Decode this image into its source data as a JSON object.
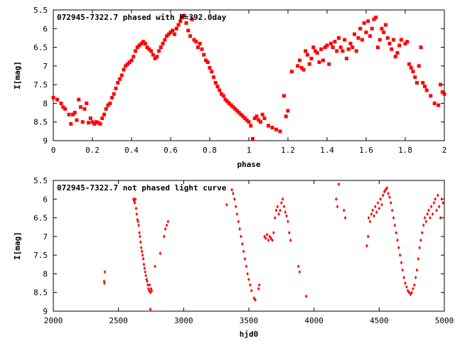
{
  "chart_data": [
    {
      "type": "scatter",
      "title": "072945-7322.7 phased with P=392.0day",
      "xlabel": "phase",
      "ylabel": "I[mag]",
      "xlim": [
        0,
        2
      ],
      "ylim": [
        5.5,
        9
      ],
      "y_inverted": true,
      "xticks": [
        0,
        0.2,
        0.4,
        0.6,
        0.8,
        1,
        1.2,
        1.4,
        1.6,
        1.8,
        2
      ],
      "xtick_labels": [
        "0",
        "0.2",
        "0.4",
        "0.6",
        "0.8",
        "1",
        "1.2",
        "1.4",
        "1.6",
        "1.8",
        "2"
      ],
      "yticks": [
        5.5,
        6,
        6.5,
        7,
        7.5,
        8,
        8.5,
        9
      ],
      "ytick_labels": [
        "5.5",
        "6",
        "6.5",
        "7",
        "7.5",
        "8",
        "8.5",
        "9"
      ],
      "grid": false,
      "marker_color": "#ff0000",
      "marker": "square",
      "points": [
        [
          0.0,
          7.85
        ],
        [
          0.02,
          7.9
        ],
        [
          0.04,
          8.0
        ],
        [
          0.05,
          8.1
        ],
        [
          0.06,
          8.15
        ],
        [
          0.08,
          8.3
        ],
        [
          0.09,
          8.55
        ],
        [
          0.1,
          8.3
        ],
        [
          0.11,
          8.25
        ],
        [
          0.12,
          8.45
        ],
        [
          0.13,
          7.9
        ],
        [
          0.14,
          8.1
        ],
        [
          0.15,
          8.5
        ],
        [
          0.16,
          8.15
        ],
        [
          0.17,
          8.0
        ],
        [
          0.18,
          8.52
        ],
        [
          0.19,
          8.4
        ],
        [
          0.2,
          8.5
        ],
        [
          0.21,
          8.55
        ],
        [
          0.22,
          8.5
        ],
        [
          0.23,
          8.52
        ],
        [
          0.24,
          8.55
        ],
        [
          0.25,
          8.4
        ],
        [
          0.26,
          8.3
        ],
        [
          0.27,
          8.15
        ],
        [
          0.28,
          8.05
        ],
        [
          0.29,
          8.0
        ],
        [
          0.3,
          7.85
        ],
        [
          0.31,
          7.75
        ],
        [
          0.32,
          7.6
        ],
        [
          0.33,
          7.45
        ],
        [
          0.34,
          7.35
        ],
        [
          0.35,
          7.25
        ],
        [
          0.36,
          7.1
        ],
        [
          0.37,
          7.0
        ],
        [
          0.38,
          6.95
        ],
        [
          0.39,
          6.9
        ],
        [
          0.4,
          6.85
        ],
        [
          0.41,
          6.75
        ],
        [
          0.42,
          6.6
        ],
        [
          0.43,
          6.5
        ],
        [
          0.44,
          6.45
        ],
        [
          0.45,
          6.4
        ],
        [
          0.46,
          6.35
        ],
        [
          0.47,
          6.4
        ],
        [
          0.48,
          6.5
        ],
        [
          0.49,
          6.55
        ],
        [
          0.5,
          6.6
        ],
        [
          0.51,
          6.7
        ],
        [
          0.52,
          6.8
        ],
        [
          0.53,
          6.75
        ],
        [
          0.54,
          6.6
        ],
        [
          0.55,
          6.5
        ],
        [
          0.56,
          6.4
        ],
        [
          0.57,
          6.3
        ],
        [
          0.58,
          6.2
        ],
        [
          0.59,
          6.15
        ],
        [
          0.6,
          6.1
        ],
        [
          0.61,
          6.05
        ],
        [
          0.62,
          6.15
        ],
        [
          0.63,
          6.0
        ],
        [
          0.64,
          5.9
        ],
        [
          0.65,
          5.8
        ],
        [
          0.66,
          5.7
        ],
        [
          0.67,
          5.65
        ],
        [
          0.68,
          5.85
        ],
        [
          0.69,
          6.05
        ],
        [
          0.7,
          6.2
        ],
        [
          0.71,
          5.75
        ],
        [
          0.72,
          6.3
        ],
        [
          0.73,
          6.35
        ],
        [
          0.74,
          6.5
        ],
        [
          0.75,
          6.4
        ],
        [
          0.76,
          6.55
        ],
        [
          0.77,
          6.7
        ],
        [
          0.78,
          6.85
        ],
        [
          0.79,
          6.9
        ],
        [
          0.8,
          7.05
        ],
        [
          0.81,
          7.15
        ],
        [
          0.82,
          7.3
        ],
        [
          0.83,
          7.45
        ],
        [
          0.84,
          7.55
        ],
        [
          0.85,
          7.65
        ],
        [
          0.86,
          7.75
        ],
        [
          0.87,
          7.8
        ],
        [
          0.88,
          7.9
        ],
        [
          0.89,
          7.95
        ],
        [
          0.9,
          8.0
        ],
        [
          0.91,
          8.05
        ],
        [
          0.92,
          8.1
        ],
        [
          0.93,
          8.15
        ],
        [
          0.94,
          8.2
        ],
        [
          0.95,
          8.25
        ],
        [
          0.96,
          8.3
        ],
        [
          0.97,
          8.35
        ],
        [
          0.98,
          8.4
        ],
        [
          0.99,
          8.45
        ],
        [
          1.0,
          8.5
        ],
        [
          1.01,
          8.6
        ],
        [
          1.02,
          8.95
        ],
        [
          1.03,
          8.4
        ],
        [
          1.04,
          8.35
        ],
        [
          1.05,
          8.45
        ],
        [
          1.06,
          8.5
        ],
        [
          1.07,
          8.3
        ],
        [
          1.08,
          8.4
        ],
        [
          1.1,
          8.6
        ],
        [
          1.12,
          8.65
        ],
        [
          1.14,
          8.7
        ],
        [
          1.16,
          8.75
        ],
        [
          1.18,
          7.8
        ],
        [
          1.19,
          8.35
        ],
        [
          1.2,
          8.2
        ],
        [
          1.22,
          7.15
        ],
        [
          1.25,
          7.0
        ],
        [
          1.26,
          6.85
        ],
        [
          1.27,
          7.05
        ],
        [
          1.28,
          7.1
        ],
        [
          1.29,
          6.6
        ],
        [
          1.3,
          6.7
        ],
        [
          1.31,
          6.95
        ],
        [
          1.32,
          6.8
        ],
        [
          1.33,
          6.5
        ],
        [
          1.34,
          6.6
        ],
        [
          1.35,
          6.65
        ],
        [
          1.36,
          6.9
        ],
        [
          1.37,
          6.55
        ],
        [
          1.38,
          6.85
        ],
        [
          1.39,
          6.5
        ],
        [
          1.4,
          6.45
        ],
        [
          1.41,
          6.95
        ],
        [
          1.42,
          6.4
        ],
        [
          1.43,
          6.5
        ],
        [
          1.44,
          6.35
        ],
        [
          1.45,
          6.6
        ],
        [
          1.46,
          6.25
        ],
        [
          1.47,
          6.5
        ],
        [
          1.48,
          6.6
        ],
        [
          1.49,
          6.3
        ],
        [
          1.5,
          6.8
        ],
        [
          1.51,
          6.55
        ],
        [
          1.52,
          6.4
        ],
        [
          1.53,
          6.5
        ],
        [
          1.54,
          6.15
        ],
        [
          1.55,
          6.6
        ],
        [
          1.56,
          6.25
        ],
        [
          1.57,
          6.0
        ],
        [
          1.58,
          6.3
        ],
        [
          1.59,
          5.85
        ],
        [
          1.6,
          6.1
        ],
        [
          1.61,
          5.8
        ],
        [
          1.62,
          6.2
        ],
        [
          1.63,
          6.0
        ],
        [
          1.64,
          5.75
        ],
        [
          1.65,
          5.7
        ],
        [
          1.66,
          6.5
        ],
        [
          1.67,
          6.3
        ],
        [
          1.68,
          6.0
        ],
        [
          1.69,
          6.1
        ],
        [
          1.7,
          5.9
        ],
        [
          1.71,
          6.25
        ],
        [
          1.72,
          6.4
        ],
        [
          1.73,
          6.55
        ],
        [
          1.74,
          6.3
        ],
        [
          1.75,
          6.75
        ],
        [
          1.76,
          6.65
        ],
        [
          1.77,
          6.45
        ],
        [
          1.78,
          6.3
        ],
        [
          1.8,
          6.4
        ],
        [
          1.81,
          6.35
        ],
        [
          1.82,
          6.95
        ],
        [
          1.83,
          7.05
        ],
        [
          1.84,
          7.15
        ],
        [
          1.85,
          7.3
        ],
        [
          1.86,
          7.45
        ],
        [
          1.87,
          7.0
        ],
        [
          1.88,
          6.5
        ],
        [
          1.89,
          7.45
        ],
        [
          1.9,
          7.55
        ],
        [
          1.91,
          7.65
        ],
        [
          1.93,
          7.8
        ],
        [
          1.95,
          8.0
        ],
        [
          1.97,
          8.05
        ],
        [
          1.98,
          7.5
        ],
        [
          1.99,
          7.7
        ],
        [
          2.0,
          7.75
        ]
      ]
    },
    {
      "type": "scatter",
      "title": "072945-7322.7 not phased light curve",
      "xlabel": "hjd0",
      "ylabel": "I[mag]",
      "xlim": [
        2000,
        5000
      ],
      "ylim": [
        5.5,
        9
      ],
      "y_inverted": true,
      "xticks": [
        2000,
        2500,
        3000,
        3500,
        4000,
        4500,
        5000
      ],
      "xtick_labels": [
        "2000",
        "2500",
        "3000",
        "3500",
        "4000",
        "4500",
        "5000"
      ],
      "yticks": [
        5.5,
        6,
        6.5,
        7,
        7.5,
        8,
        8.5,
        9
      ],
      "ytick_labels": [
        "5.5",
        "6",
        "6.5",
        "7",
        "7.5",
        "8",
        "8.5",
        "9"
      ],
      "grid": false,
      "marker_color": "#ff0000",
      "marker": "diamond",
      "points": [
        [
          2390,
          8.2
        ],
        [
          2392,
          8.25
        ],
        [
          2395,
          7.95
        ],
        [
          2615,
          6.0
        ],
        [
          2620,
          6.05
        ],
        [
          2625,
          6.1
        ],
        [
          2630,
          6.0
        ],
        [
          2635,
          6.25
        ],
        [
          2640,
          6.4
        ],
        [
          2645,
          6.55
        ],
        [
          2650,
          6.6
        ],
        [
          2655,
          6.7
        ],
        [
          2660,
          6.9
        ],
        [
          2665,
          7.0
        ],
        [
          2670,
          7.15
        ],
        [
          2675,
          7.3
        ],
        [
          2680,
          7.4
        ],
        [
          2685,
          7.5
        ],
        [
          2690,
          7.6
        ],
        [
          2695,
          7.75
        ],
        [
          2700,
          7.85
        ],
        [
          2705,
          7.95
        ],
        [
          2710,
          8.05
        ],
        [
          2715,
          8.15
        ],
        [
          2720,
          8.2
        ],
        [
          2725,
          8.3
        ],
        [
          2730,
          8.4
        ],
        [
          2735,
          8.45
        ],
        [
          2740,
          8.3
        ],
        [
          2745,
          8.5
        ],
        [
          2750,
          8.4
        ],
        [
          2755,
          8.45
        ],
        [
          2745,
          8.95
        ],
        [
          2780,
          7.8
        ],
        [
          2820,
          7.45
        ],
        [
          2850,
          7.0
        ],
        [
          2860,
          6.8
        ],
        [
          2870,
          6.7
        ],
        [
          2880,
          6.6
        ],
        [
          3330,
          6.15
        ],
        [
          3370,
          5.75
        ],
        [
          3380,
          5.85
        ],
        [
          3390,
          6.0
        ],
        [
          3400,
          6.2
        ],
        [
          3410,
          6.4
        ],
        [
          3420,
          6.6
        ],
        [
          3430,
          6.8
        ],
        [
          3440,
          7.0
        ],
        [
          3450,
          7.2
        ],
        [
          3460,
          7.4
        ],
        [
          3470,
          7.6
        ],
        [
          3480,
          7.8
        ],
        [
          3490,
          8.0
        ],
        [
          3500,
          8.15
        ],
        [
          3510,
          8.3
        ],
        [
          3520,
          8.45
        ],
        [
          3540,
          8.65
        ],
        [
          3550,
          8.7
        ],
        [
          3575,
          8.4
        ],
        [
          3580,
          8.3
        ],
        [
          3620,
          7.0
        ],
        [
          3630,
          7.05
        ],
        [
          3640,
          6.95
        ],
        [
          3650,
          7.1
        ],
        [
          3660,
          7.0
        ],
        [
          3670,
          7.05
        ],
        [
          3680,
          7.1
        ],
        [
          3690,
          6.9
        ],
        [
          3700,
          6.5
        ],
        [
          3710,
          6.3
        ],
        [
          3720,
          6.2
        ],
        [
          3730,
          6.4
        ],
        [
          3740,
          6.3
        ],
        [
          3750,
          6.1
        ],
        [
          3760,
          6.0
        ],
        [
          3770,
          6.2
        ],
        [
          3780,
          6.35
        ],
        [
          3790,
          6.45
        ],
        [
          3800,
          6.6
        ],
        [
          3810,
          6.9
        ],
        [
          3820,
          7.1
        ],
        [
          3880,
          7.8
        ],
        [
          3890,
          7.95
        ],
        [
          3940,
          8.6
        ],
        [
          4170,
          6.0
        ],
        [
          4180,
          6.2
        ],
        [
          4190,
          5.6
        ],
        [
          4230,
          6.3
        ],
        [
          4240,
          6.5
        ],
        [
          4420,
          6.5
        ],
        [
          4430,
          6.6
        ],
        [
          4440,
          6.4
        ],
        [
          4450,
          6.3
        ],
        [
          4460,
          6.45
        ],
        [
          4470,
          6.2
        ],
        [
          4480,
          6.35
        ],
        [
          4490,
          6.1
        ],
        [
          4500,
          6.25
        ],
        [
          4510,
          6.0
        ],
        [
          4520,
          6.15
        ],
        [
          4530,
          5.9
        ],
        [
          4540,
          5.8
        ],
        [
          4550,
          5.75
        ],
        [
          4560,
          5.7
        ],
        [
          4570,
          5.85
        ],
        [
          4580,
          5.95
        ],
        [
          4590,
          6.1
        ],
        [
          4600,
          6.3
        ],
        [
          4610,
          6.5
        ],
        [
          4620,
          6.7
        ],
        [
          4630,
          6.9
        ],
        [
          4640,
          7.1
        ],
        [
          4650,
          7.3
        ],
        [
          4660,
          7.5
        ],
        [
          4670,
          7.7
        ],
        [
          4680,
          7.9
        ],
        [
          4690,
          8.1
        ],
        [
          4700,
          8.25
        ],
        [
          4710,
          8.35
        ],
        [
          4720,
          8.45
        ],
        [
          4730,
          8.5
        ],
        [
          4740,
          8.55
        ],
        [
          4750,
          8.5
        ],
        [
          4760,
          8.4
        ],
        [
          4770,
          8.3
        ],
        [
          4780,
          8.1
        ],
        [
          4790,
          7.9
        ],
        [
          4800,
          7.6
        ],
        [
          4810,
          7.3
        ],
        [
          4820,
          7.1
        ],
        [
          4830,
          6.9
        ],
        [
          4840,
          6.7
        ],
        [
          4850,
          6.5
        ],
        [
          4860,
          6.6
        ],
        [
          4870,
          6.4
        ],
        [
          4880,
          6.3
        ],
        [
          4890,
          6.5
        ],
        [
          4900,
          6.2
        ],
        [
          4910,
          6.4
        ],
        [
          4920,
          6.1
        ],
        [
          4930,
          6.0
        ],
        [
          4940,
          6.3
        ],
        [
          4950,
          5.9
        ],
        [
          4960,
          6.2
        ],
        [
          4970,
          6.5
        ],
        [
          4980,
          6.0
        ],
        [
          4990,
          6.1
        ],
        [
          4405,
          7.25
        ],
        [
          4415,
          7.0
        ]
      ]
    }
  ]
}
